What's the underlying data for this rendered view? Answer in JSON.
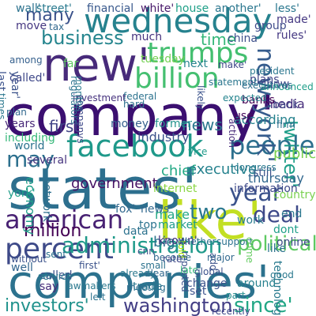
{
  "word_cloud": {
    "background": "#ffffff",
    "words": [
      {
        "text": "company'",
        "color": "#3b0f70"
      },
      {
        "text": "companies'",
        "color": "#2c728e"
      },
      {
        "text": "states'",
        "color": "#2d6f8e"
      },
      {
        "text": "new'",
        "color": "#472a7a"
      },
      {
        "text": "like'",
        "color": "#c2df23"
      },
      {
        "text": "wednesday",
        "color": "#26828e"
      },
      {
        "text": "percent",
        "color": "#3e4a89"
      },
      {
        "text": "facebook",
        "color": "#1f998a"
      },
      {
        "text": "trumps",
        "color": "#44bf70"
      },
      {
        "text": "american",
        "color": "#482173"
      },
      {
        "text": "billion",
        "color": "#44bf70"
      },
      {
        "text": "people'",
        "color": "#2d708e"
      },
      {
        "text": "business",
        "color": "#25858e"
      },
      {
        "text": "new york'",
        "color": "#365c8d"
      },
      {
        "text": "twitter'",
        "color": "#1f9e89"
      },
      {
        "text": "administration",
        "color": "#1f9a8a"
      },
      {
        "text": "million",
        "color": "#440154"
      },
      {
        "text": "year",
        "color": "#3b528b"
      },
      {
        "text": "deal",
        "color": "#3e4989"
      },
      {
        "text": "two",
        "color": "#2a788e"
      },
      {
        "text": "investors'",
        "color": "#20928c"
      },
      {
        "text": "washington",
        "color": "#433e85"
      },
      {
        "text": "since'",
        "color": "#22a785"
      },
      {
        "text": "many",
        "color": "#3b528b"
      },
      {
        "text": "may",
        "color": "#2d708e"
      },
      {
        "text": "first",
        "color": "#414487"
      },
      {
        "text": "time",
        "color": "#35b779"
      },
      {
        "text": "news",
        "color": "#2a788e"
      },
      {
        "text": "political",
        "color": "#5ec962"
      },
      {
        "text": "chief",
        "color": "#22a884"
      },
      {
        "text": "executive",
        "color": "#26828e"
      },
      {
        "text": "fox'",
        "color": "#31688e"
      },
      {
        "text": "news'",
        "color": "#31688e"
      },
      {
        "text": "york'",
        "color": "#1f9e89"
      },
      {
        "text": "data",
        "color": "#2c728e"
      },
      {
        "text": "industry",
        "color": "#3b528b"
      },
      {
        "text": "work",
        "color": "#287c8e"
      },
      {
        "text": "media",
        "color": "#472d7b"
      },
      {
        "text": "thursday",
        "color": "#31688e"
      },
      {
        "text": "information'",
        "color": "#3e4989"
      },
      {
        "text": "according",
        "color": "#26828e"
      },
      {
        "text": "public'",
        "color": "#7ad151"
      },
      {
        "text": "still'",
        "color": "#3b528b"
      },
      {
        "text": "money",
        "color": "#355f8d"
      },
      {
        "text": "former",
        "color": "#20928c"
      },
      {
        "text": "government",
        "color": "#471365"
      },
      {
        "text": "network",
        "color": "#2d708e"
      },
      {
        "text": "economy",
        "color": "#1f9e89"
      },
      {
        "text": "including",
        "color": "#35b779"
      },
      {
        "text": "world",
        "color": "#2c728e"
      },
      {
        "text": "years",
        "color": "#482878"
      },
      {
        "text": "several",
        "color": "#46337e"
      },
      {
        "text": "back",
        "color": "#404688"
      },
      {
        "text": "financial",
        "color": "#38588c"
      },
      {
        "text": "street'",
        "color": "#29798e"
      },
      {
        "text": "white'",
        "color": "#48186a"
      },
      {
        "text": "house",
        "color": "#1fa088"
      },
      {
        "text": "another'",
        "color": "#2a768e"
      },
      {
        "text": "less'",
        "color": "#2a778e"
      },
      {
        "text": "made'",
        "color": "#453882"
      },
      {
        "text": "rules'",
        "color": "#453882"
      },
      {
        "text": "group",
        "color": "#3e4a89"
      },
      {
        "text": "china",
        "color": "#3c4f8a"
      },
      {
        "text": "much",
        "color": "#46327e"
      },
      {
        "text": "move",
        "color": "#453781"
      },
      {
        "text": "wall'",
        "color": "#2c728e"
      },
      {
        "text": "tax",
        "color": "#31688e"
      },
      {
        "text": "among",
        "color": "#35608d"
      },
      {
        "text": "last",
        "color": "#3b528b"
      },
      {
        "text": "year'",
        "color": "#3b528b"
      },
      {
        "text": "called'",
        "color": "#3f4889"
      },
      {
        "text": "far",
        "color": "#5ec962"
      },
      {
        "text": "next",
        "color": "#25838e"
      },
      {
        "text": "plans",
        "color": "#414487"
      },
      {
        "text": "banks",
        "color": "#440154"
      },
      {
        "text": "show",
        "color": "#3e4989"
      },
      {
        "text": "tuesday",
        "color": "#75d054"
      },
      {
        "text": "big",
        "color": "#2c718e"
      },
      {
        "text": "make",
        "color": "#22a785"
      },
      {
        "text": "market",
        "color": "#1e9b8a"
      },
      {
        "text": "top",
        "color": "#2c738e"
      },
      {
        "text": "well",
        "color": "#32658e"
      },
      {
        "text": "trade",
        "color": "#2a788e"
      },
      {
        "text": "internet",
        "color": "#8bd646"
      },
      {
        "text": "online",
        "color": "#3e4c8a"
      },
      {
        "text": "technology",
        "color": "#297a8e"
      },
      {
        "text": "end",
        "color": "#2a768e"
      },
      {
        "text": "set",
        "color": "#3b528b"
      },
      {
        "text": "around",
        "color": "#27808e"
      },
      {
        "text": "meeting",
        "color": "#2e6e8e"
      },
      {
        "text": "change",
        "color": "#3b528b"
      },
      {
        "text": "part",
        "color": "#228c8d"
      },
      {
        "text": "say",
        "color": "#472c7a"
      },
      {
        "text": "called",
        "color": "#3b528b"
      },
      {
        "text": "country",
        "color": "#7ad151"
      },
      {
        "text": "use",
        "color": "#46085c"
      },
      {
        "text": "dont",
        "color": "#1f9e89"
      },
      {
        "text": "plan",
        "color": "#31688e"
      },
      {
        "text": "vice",
        "color": "#1f9a8a"
      },
      {
        "text": "first'",
        "color": "#3b528b"
      },
      {
        "text": "known'",
        "color": "#46337e"
      },
      {
        "text": "service",
        "color": "#29798e"
      },
      {
        "text": "reported",
        "color": "#3b528b"
      },
      {
        "text": "told",
        "color": "#ade400"
      },
      {
        "text": "support",
        "color": "#2c728e"
      },
      {
        "text": "come",
        "color": "#63cb5f"
      },
      {
        "text": "like",
        "color": "#2c738e"
      },
      {
        "text": "firm",
        "color": "#2d708e"
      },
      {
        "text": "federal",
        "color": "#2c728e"
      },
      {
        "text": "investment",
        "color": "#46327e"
      },
      {
        "text": "likely",
        "color": "#3b528b"
      },
      {
        "text": "companys",
        "color": "#3e4989"
      },
      {
        "text": "expected",
        "color": "#25848e"
      },
      {
        "text": "announced",
        "color": "#1f9e89"
      },
      {
        "text": "add",
        "color": "#3b528b"
      },
      {
        "text": "good",
        "color": "#2a788e"
      },
      {
        "text": "become",
        "color": "#31688e"
      },
      {
        "text": "late",
        "color": "#35b779"
      },
      {
        "text": "whether",
        "color": "#2c728e"
      },
      {
        "text": "statement",
        "color": "#2a768e"
      },
      {
        "text": "executives",
        "color": "#2d708e"
      },
      {
        "text": "president",
        "color": "#2a768e"
      },
      {
        "text": "congress",
        "color": "#2a788e"
      },
      {
        "text": "regulators",
        "color": "#2c728e"
      },
      {
        "text": "months",
        "color": "#2a788e"
      },
      {
        "text": "make'",
        "color": "#3e4989"
      },
      {
        "text": "action",
        "color": "#472a7a"
      },
      {
        "text": "times",
        "color": "#2a778e"
      },
      {
        "text": "cnn",
        "color": "#3b528b"
      },
      {
        "text": "sent",
        "color": "#2c728e"
      },
      {
        "text": "major",
        "color": "#31688e"
      },
      {
        "text": "recently",
        "color": "#3e4989"
      },
      {
        "text": "left",
        "color": "#2c728e"
      },
      {
        "text": "hard",
        "color": "#2d708e"
      },
      {
        "text": "without",
        "color": "#3b528b"
      },
      {
        "text": "lawmakers",
        "color": "#2a788e"
      },
      {
        "text": "clear",
        "color": "#31688e"
      },
      {
        "text": "rate",
        "color": "#3e4989"
      },
      {
        "text": "global",
        "color": "#3b528b"
      },
      {
        "text": "small",
        "color": "#2c728e"
      },
      {
        "text": "already",
        "color": "#2a788e"
      }
    ]
  }
}
